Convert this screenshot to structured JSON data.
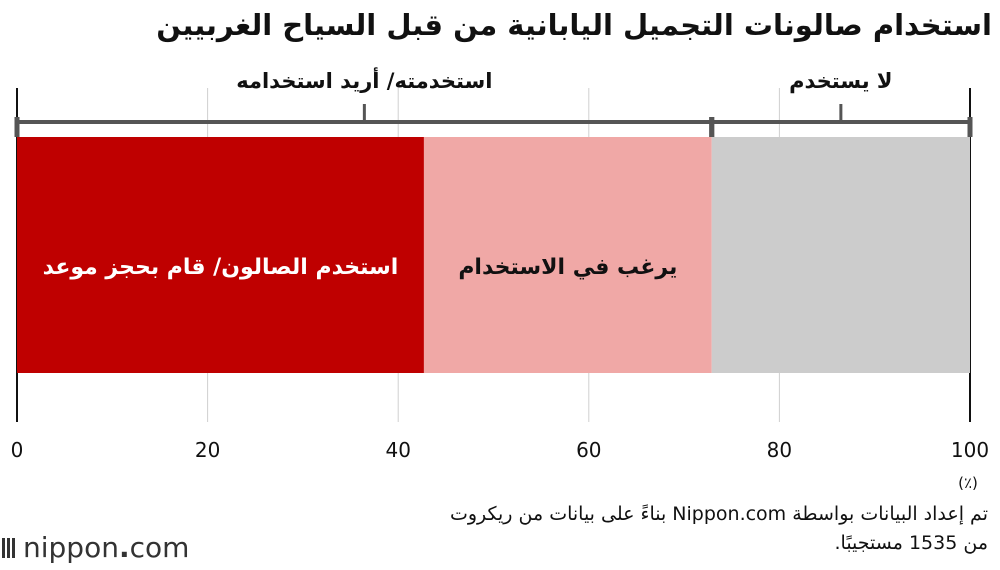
{
  "title": "استخدام صالونات التجميل اليابانية من قبل السياح الغربيين",
  "chart_data": {
    "type": "bar",
    "orientation": "horizontal-stacked",
    "xlim": [
      0,
      100
    ],
    "x_ticks": [
      0,
      20,
      40,
      60,
      80,
      100
    ],
    "unit_label": "(٪)",
    "grid": true,
    "segments": [
      {
        "label": "استخدم الصالون/ قام بحجز موعد",
        "value": 42.7,
        "color": "#bf0000",
        "text_color": "#ffffff"
      },
      {
        "label": "يرغب في الاستخدام",
        "value": 30.2,
        "color": "#f0a8a6",
        "text_color": "#111111"
      },
      {
        "label": "",
        "value": 27.1,
        "color": "#cccccc",
        "text_color": "#111111"
      }
    ],
    "brackets": [
      {
        "label": "استخدمته/ أريد استخدامه",
        "start": 0,
        "end": 72.9
      },
      {
        "label": "لا يستخدم",
        "start": 72.9,
        "end": 100
      }
    ]
  },
  "footer_lines": [
    "تم إعداد البيانات بواسطة Nippon.com بناءً على بيانات من ريكروت",
    "من 1535 مستجيبًا."
  ],
  "logo": {
    "text": "nippon",
    "dot": ".",
    "suffix": "com",
    "icon": "nippon-bars-icon"
  }
}
